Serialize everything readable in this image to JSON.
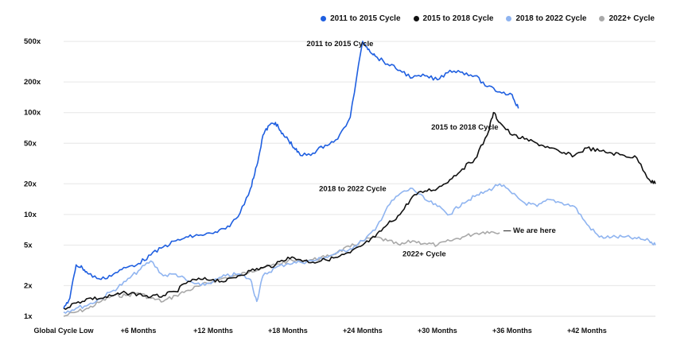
{
  "legend": {
    "items": [
      {
        "label": "2011 to 2015 Cycle",
        "color": "#1f5fe0"
      },
      {
        "label": "2015 to 2018 Cycle",
        "color": "#111111"
      },
      {
        "label": "2018 to 2022 Cycle",
        "color": "#8fb4f0"
      },
      {
        "label": "2022+ Cycle",
        "color": "#a9a9a9"
      }
    ]
  },
  "chart_data": {
    "type": "line",
    "title": "",
    "xlabel": "",
    "ylabel": "",
    "y_scale": "log",
    "ylim": [
      1,
      600
    ],
    "xlim": [
      0,
      47.5
    ],
    "grid": "horizontal",
    "legend_position": "top-right",
    "y_ticks": [
      {
        "value": 1,
        "label": "1x"
      },
      {
        "value": 2,
        "label": "2x"
      },
      {
        "value": 5,
        "label": "5x"
      },
      {
        "value": 10,
        "label": "10x"
      },
      {
        "value": 20,
        "label": "20x"
      },
      {
        "value": 50,
        "label": "50x"
      },
      {
        "value": 100,
        "label": "100x"
      },
      {
        "value": 200,
        "label": "200x"
      },
      {
        "value": 500,
        "label": "500x"
      }
    ],
    "x_ticks": [
      {
        "value": 0,
        "label": "Global Cycle Low"
      },
      {
        "value": 6,
        "label": "+6 Months"
      },
      {
        "value": 12,
        "label": "+12 Months"
      },
      {
        "value": 18,
        "label": "+18 Months"
      },
      {
        "value": 24,
        "label": "+24 Months"
      },
      {
        "value": 30,
        "label": "+30 Months"
      },
      {
        "value": 36,
        "label": "+36 Months"
      },
      {
        "value": 42,
        "label": "+42 Months"
      }
    ],
    "series": [
      {
        "name": "2011 to 2015 Cycle",
        "color": "#1f5fe0",
        "x": [
          0,
          0.5,
          1,
          1.5,
          2,
          3,
          4,
          5,
          6,
          7,
          8,
          9,
          10,
          11,
          12,
          13,
          14,
          15,
          15.5,
          16,
          16.5,
          17,
          17.5,
          18,
          18.5,
          19,
          20,
          21,
          22,
          23,
          24,
          24.5,
          25,
          26,
          27,
          28,
          29,
          30,
          31,
          32,
          33,
          34,
          35,
          36,
          36.5
        ],
        "y": [
          1.2,
          1.5,
          3.2,
          3.0,
          2.6,
          2.3,
          2.6,
          3.0,
          3.3,
          4.0,
          4.8,
          5.5,
          6.0,
          6.3,
          6.5,
          7.2,
          9.5,
          18,
          30,
          60,
          75,
          80,
          62,
          55,
          45,
          38,
          40,
          48,
          55,
          90,
          500,
          420,
          360,
          300,
          260,
          220,
          230,
          210,
          260,
          250,
          230,
          180,
          160,
          150,
          110
        ]
      },
      {
        "name": "2015 to 2018 Cycle",
        "color": "#111111",
        "x": [
          0,
          1,
          2,
          3,
          4,
          5,
          6,
          7,
          8,
          9,
          10,
          11,
          12,
          13,
          14,
          15,
          16,
          17,
          18,
          19,
          20,
          21,
          22,
          23,
          24,
          25,
          26,
          27,
          28,
          29,
          30,
          31,
          32,
          33,
          34,
          34.5,
          35,
          36,
          37,
          38,
          39,
          40,
          41,
          42,
          43,
          44,
          45,
          46,
          47,
          47.5
        ],
        "y": [
          1.2,
          1.35,
          1.5,
          1.5,
          1.6,
          1.7,
          1.65,
          1.55,
          1.6,
          1.75,
          2.2,
          2.3,
          2.3,
          2.2,
          2.5,
          2.8,
          3.0,
          3.2,
          3.8,
          3.6,
          3.4,
          3.6,
          3.8,
          4.2,
          5.0,
          6.0,
          8.0,
          10,
          15,
          17,
          18,
          22,
          28,
          35,
          60,
          100,
          80,
          60,
          55,
          50,
          45,
          40,
          38,
          45,
          42,
          40,
          38,
          36,
          22,
          20
        ]
      },
      {
        "name": "2018 to 2022 Cycle",
        "color": "#8fb4f0",
        "x": [
          0,
          1,
          2,
          3,
          4,
          5,
          6,
          7,
          8,
          9,
          10,
          11,
          12,
          13,
          14,
          15,
          15.5,
          16,
          17,
          18,
          19,
          20,
          21,
          22,
          23,
          24,
          25,
          26,
          27,
          28,
          29,
          30,
          31,
          32,
          33,
          34,
          35,
          36,
          37,
          38,
          39,
          40,
          41,
          42,
          43,
          44,
          45,
          46,
          47,
          47.5
        ],
        "y": [
          1.1,
          1.2,
          1.3,
          1.5,
          1.8,
          2.2,
          2.8,
          3.5,
          2.5,
          2.6,
          2.2,
          2.0,
          2.2,
          2.5,
          2.6,
          2.3,
          1.4,
          2.5,
          3.0,
          3.3,
          3.4,
          3.5,
          3.8,
          4.2,
          4.6,
          5.5,
          7.0,
          12,
          16,
          18,
          14,
          12,
          10,
          13,
          15,
          17,
          20,
          16,
          13,
          12,
          14,
          13,
          12,
          8,
          6,
          6,
          6,
          5.8,
          5.5,
          5.0
        ]
      },
      {
        "name": "2022+ Cycle",
        "color": "#a9a9a9",
        "x": [
          0,
          1,
          2,
          3,
          4,
          5,
          6,
          7,
          8,
          9,
          10,
          11,
          12,
          13,
          14,
          15,
          16,
          17,
          18,
          19,
          20,
          21,
          22,
          23,
          24,
          25,
          26,
          27,
          28,
          29,
          30,
          31,
          32,
          33,
          34,
          35
        ],
        "y": [
          1.0,
          1.1,
          1.2,
          1.4,
          1.6,
          1.6,
          1.7,
          1.5,
          1.4,
          1.6,
          1.8,
          2.0,
          2.2,
          2.4,
          2.5,
          2.8,
          3.0,
          3.2,
          3.5,
          3.5,
          3.6,
          3.8,
          4.3,
          4.8,
          5.5,
          6.0,
          5.5,
          5.0,
          5.5,
          5.2,
          5.0,
          5.5,
          6.0,
          6.5,
          6.8,
          6.6
        ]
      }
    ],
    "annotations": [
      {
        "text": "2011 to 2015 Cycle",
        "x": 19.5,
        "y": 450
      },
      {
        "text": "2015 to 2018 Cycle",
        "x": 29.5,
        "y": 68
      },
      {
        "text": "2018 to 2022 Cycle",
        "x": 20.5,
        "y": 17
      },
      {
        "text": "— We are here",
        "x": 35.3,
        "y": 6.6
      },
      {
        "text": "2022+ Cycle",
        "x": 27.2,
        "y": 3.9
      }
    ]
  }
}
